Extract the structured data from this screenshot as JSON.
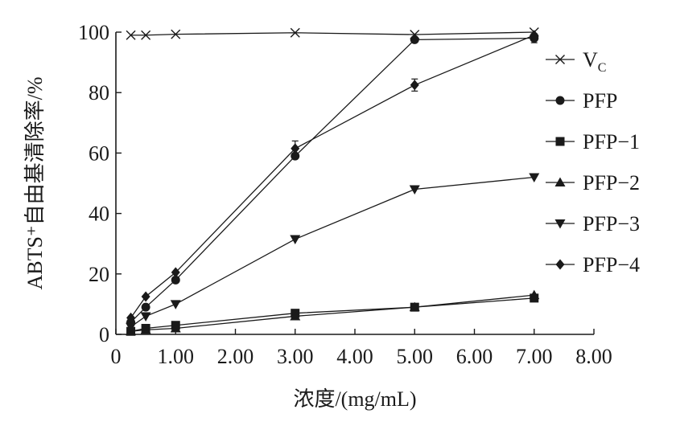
{
  "chart_data": {
    "type": "line",
    "title": "",
    "xlabel": "浓度/(mg/mL)",
    "ylabel": "ABTS⁺自由基清除率/%",
    "xlim": [
      0,
      8
    ],
    "ylim": [
      0,
      100
    ],
    "x_ticks": [
      "0",
      "1.00",
      "2.00",
      "3.00",
      "4.00",
      "5.00",
      "6.00",
      "7.00",
      "8.00"
    ],
    "y_ticks": [
      "0",
      "20",
      "40",
      "60",
      "80",
      "100"
    ],
    "grid": false,
    "legend_position": "right",
    "series": [
      {
        "name": "Vc",
        "label_main": "V",
        "label_sub": "C",
        "marker": "x",
        "x": [
          0.25,
          0.5,
          1.0,
          3.0,
          5.0,
          7.0
        ],
        "y": [
          99,
          99,
          99.3,
          99.8,
          99.2,
          100
        ],
        "err": [
          0,
          0,
          0,
          0,
          0,
          0
        ]
      },
      {
        "name": "PFP",
        "label_main": "PFP",
        "label_sub": "",
        "marker": "circle",
        "x": [
          0.25,
          0.5,
          1.0,
          3.0,
          5.0,
          7.0
        ],
        "y": [
          4,
          9,
          18,
          59,
          97.5,
          98
        ],
        "err": [
          0,
          0,
          0,
          0,
          0,
          1.5
        ]
      },
      {
        "name": "PFP-1",
        "label_main": "PFP−1",
        "label_sub": "",
        "marker": "square",
        "x": [
          0.25,
          0.5,
          1.0,
          3.0,
          5.0,
          7.0
        ],
        "y": [
          1,
          2,
          3,
          7,
          9,
          12
        ],
        "err": [
          0,
          0,
          0,
          0,
          0,
          0
        ]
      },
      {
        "name": "PFP-2",
        "label_main": "PFP−2",
        "label_sub": "",
        "marker": "triangle-up",
        "x": [
          0.25,
          0.5,
          1.0,
          3.0,
          5.0,
          7.0
        ],
        "y": [
          1,
          1.5,
          2,
          6,
          9,
          13
        ],
        "err": [
          0,
          0,
          0,
          0,
          0,
          0
        ]
      },
      {
        "name": "PFP-3",
        "label_main": "PFP−3",
        "label_sub": "",
        "marker": "triangle-down",
        "x": [
          0.25,
          0.5,
          1.0,
          3.0,
          5.0,
          7.0
        ],
        "y": [
          2.5,
          6,
          10,
          31.5,
          48,
          52
        ],
        "err": [
          0,
          0,
          0,
          0,
          0,
          0
        ]
      },
      {
        "name": "PFP-4",
        "label_main": "PFP−4",
        "label_sub": "",
        "marker": "diamond",
        "x": [
          0.25,
          0.5,
          1.0,
          3.0,
          5.0,
          7.0
        ],
        "y": [
          5.5,
          12.5,
          20.5,
          61.5,
          82.5,
          99
        ],
        "err": [
          0,
          0,
          0,
          2.5,
          2,
          0
        ]
      }
    ]
  }
}
